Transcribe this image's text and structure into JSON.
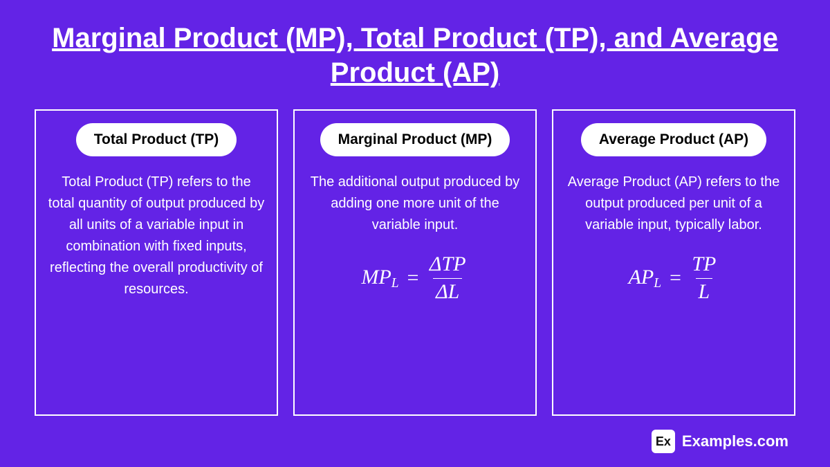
{
  "background_color": "#6323e6",
  "title": {
    "text": "Marginal Product (MP), Total Product (TP), and Average Product (AP)",
    "fontsize": 40,
    "color": "#ffffff"
  },
  "cards": [
    {
      "pill": "Total Product (TP)",
      "desc": "Total Product (TP) refers to the total quantity of output produced by all units of a variable input in combination with fixed inputs, reflecting the overall productivity of resources.",
      "formula": null
    },
    {
      "pill": "Marginal Product (MP)",
      "desc": "The additional output produced by adding one more unit of the variable input.",
      "formula": {
        "lhs_main": "MP",
        "lhs_sub": "L",
        "num": "ΔTP",
        "den": "ΔL"
      }
    },
    {
      "pill": "Average Product (AP)",
      "desc": "Average Product (AP) refers to the output produced per unit of a variable input, typically labor.",
      "formula": {
        "lhs_main": "AP",
        "lhs_sub": "L",
        "num": "TP",
        "den": "L"
      }
    }
  ],
  "card_style": {
    "border_color": "#ffffff",
    "pill_bg": "#ffffff",
    "pill_color": "#000000",
    "pill_fontsize": 21,
    "desc_color": "#ffffff",
    "desc_fontsize": 20,
    "formula_color": "#ffffff",
    "formula_fontsize": 30
  },
  "footer": {
    "badge": "Ex",
    "text": "Examples.com",
    "badge_fontsize": 18,
    "text_fontsize": 22
  }
}
